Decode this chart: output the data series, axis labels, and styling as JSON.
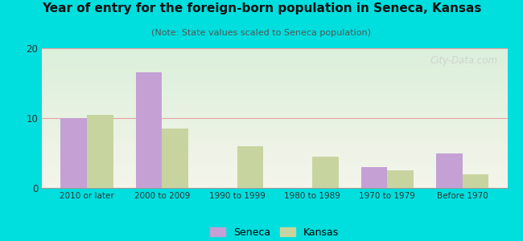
{
  "title": "Year of entry for the foreign-born population in Seneca, Kansas",
  "subtitle": "(Note: State values scaled to Seneca population)",
  "categories": [
    "2010 or later",
    "2000 to 2009",
    "1990 to 1999",
    "1980 to 1989",
    "1970 to 1979",
    "Before 1970"
  ],
  "seneca_values": [
    10,
    16.5,
    0,
    0,
    3,
    5
  ],
  "kansas_values": [
    10.5,
    8.5,
    6,
    4.5,
    2.5,
    2
  ],
  "seneca_color": "#c4a0d4",
  "kansas_color": "#c8d4a0",
  "background_outer": "#00dede",
  "ylim": [
    0,
    20
  ],
  "yticks": [
    0,
    10,
    20
  ],
  "grid_color": "#e8a0a0",
  "watermark": "City-Data.com",
  "legend_labels": [
    "Seneca",
    "Kansas"
  ],
  "bar_width": 0.35
}
